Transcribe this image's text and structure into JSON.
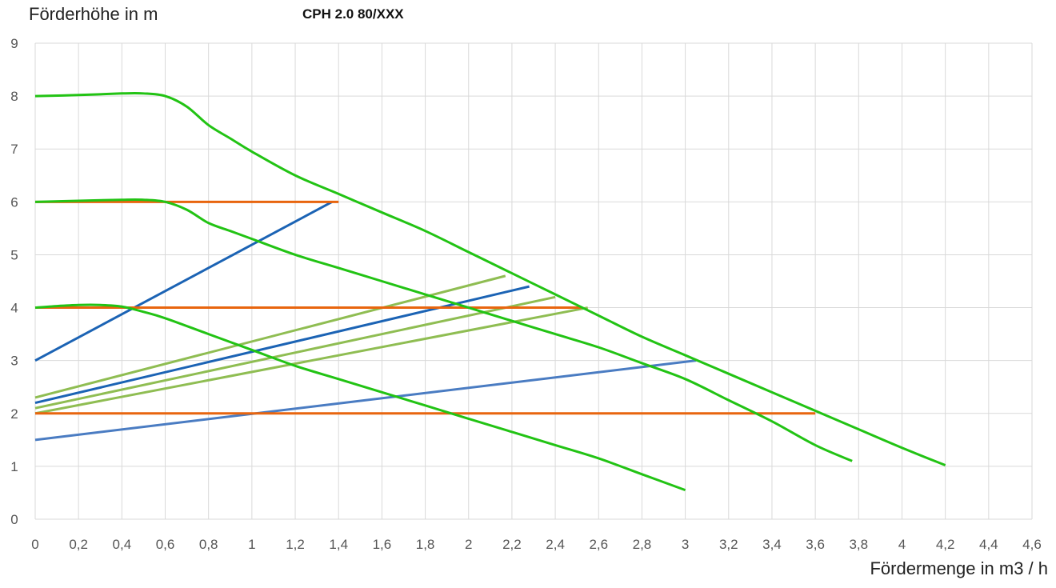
{
  "chart_data": {
    "type": "line",
    "title": "CPH 2.0 80/XXX",
    "ylabel": "Förderhöhe in m",
    "xlabel": "Fördermenge in m3 / h",
    "xlim": [
      0,
      4.6
    ],
    "ylim": [
      0,
      9
    ],
    "x_ticks": [
      "0",
      "0,2",
      "0,4",
      "0,6",
      "0,8",
      "1",
      "1,2",
      "1,4",
      "1,6",
      "1,8",
      "2",
      "2,2",
      "2,4",
      "2,6",
      "2,8",
      "3",
      "3,2",
      "3,4",
      "3,6",
      "3,8",
      "4",
      "4,2",
      "4,4",
      "4,6"
    ],
    "y_ticks": [
      "0",
      "1",
      "2",
      "3",
      "4",
      "5",
      "6",
      "7",
      "8",
      "9"
    ],
    "grid": true,
    "colors": {
      "pump_curve": "#22c314",
      "constant_pressure": "#e8650e",
      "proportional_pressure": "#1b63b4",
      "proportional_light": "#8fbd52",
      "system_curve": "#4a7cc2",
      "grid": "#d9d9d9"
    },
    "series": [
      {
        "color": "pump_curve",
        "x": [
          0,
          0.2,
          0.4,
          0.5,
          0.6,
          0.7,
          0.8,
          0.9,
          1.0,
          1.2,
          1.4,
          1.6,
          1.8,
          2.0,
          2.2,
          2.4,
          2.6,
          2.8,
          3.0,
          3.2,
          3.4,
          3.6,
          3.8,
          4.0,
          4.2
        ],
        "y": [
          8.0,
          8.02,
          8.05,
          8.05,
          8.0,
          7.8,
          7.45,
          7.2,
          6.95,
          6.5,
          6.15,
          5.8,
          5.45,
          5.05,
          4.65,
          4.25,
          3.85,
          3.45,
          3.1,
          2.75,
          2.4,
          2.05,
          1.7,
          1.35,
          1.02
        ]
      },
      {
        "color": "pump_curve",
        "x": [
          0,
          0.2,
          0.4,
          0.5,
          0.6,
          0.7,
          0.8,
          0.9,
          1.0,
          1.2,
          1.4,
          1.6,
          1.8,
          2.0,
          2.2,
          2.4,
          2.6,
          2.8,
          3.0,
          3.2,
          3.4,
          3.6,
          3.77
        ],
        "y": [
          6.0,
          6.02,
          6.04,
          6.04,
          6.0,
          5.85,
          5.6,
          5.45,
          5.3,
          5.0,
          4.75,
          4.5,
          4.25,
          4.0,
          3.75,
          3.5,
          3.25,
          2.95,
          2.65,
          2.25,
          1.85,
          1.4,
          1.1
        ]
      },
      {
        "color": "pump_curve",
        "x": [
          0,
          0.1,
          0.2,
          0.3,
          0.4,
          0.5,
          0.6,
          0.8,
          1.0,
          1.2,
          1.4,
          1.6,
          1.8,
          2.0,
          2.2,
          2.4,
          2.6,
          2.8,
          3.0
        ],
        "y": [
          4.0,
          4.03,
          4.05,
          4.05,
          4.02,
          3.92,
          3.8,
          3.5,
          3.2,
          2.9,
          2.65,
          2.4,
          2.15,
          1.9,
          1.65,
          1.4,
          1.15,
          0.85,
          0.55
        ]
      },
      {
        "color": "constant_pressure",
        "x": [
          0,
          1.4
        ],
        "y": [
          6.0,
          6.0
        ]
      },
      {
        "color": "constant_pressure",
        "x": [
          0,
          2.52
        ],
        "y": [
          4.0,
          4.0
        ]
      },
      {
        "color": "constant_pressure",
        "x": [
          0,
          3.6
        ],
        "y": [
          2.0,
          2.0
        ]
      },
      {
        "color": "proportional_pressure",
        "x": [
          0,
          1.37
        ],
        "y": [
          3.0,
          6.0
        ]
      },
      {
        "color": "proportional_pressure",
        "x": [
          0,
          2.28
        ],
        "y": [
          2.2,
          4.4
        ]
      },
      {
        "color": "proportional_light",
        "x": [
          0,
          2.17
        ],
        "y": [
          2.3,
          4.6
        ]
      },
      {
        "color": "proportional_light",
        "x": [
          0,
          2.4
        ],
        "y": [
          2.1,
          4.2
        ]
      },
      {
        "color": "proportional_light",
        "x": [
          0,
          2.55
        ],
        "y": [
          2.0,
          4.0
        ]
      },
      {
        "color": "system_curve",
        "x": [
          0,
          3.05
        ],
        "y": [
          1.5,
          3.0
        ]
      }
    ]
  }
}
